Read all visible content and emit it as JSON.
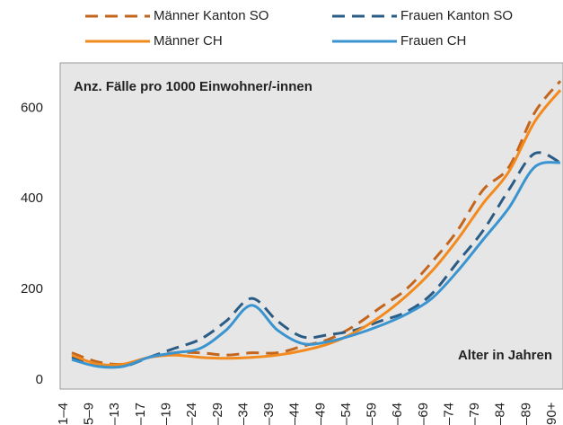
{
  "chart_data": {
    "type": "line",
    "annotations": [
      "Anz. Fälle pro 1000 Einwohner/-innen",
      "Alter in Jahren"
    ],
    "categories": [
      "1–4",
      "5–9",
      "–13",
      "–17",
      "–19",
      "–24",
      "–29",
      "–34",
      "–39",
      "–44",
      "–49",
      "–54",
      "–59",
      "–64",
      "–69",
      "–74",
      "–79",
      "–84",
      "–89",
      "90+"
    ],
    "series": [
      {
        "name": "Männer Kanton SO",
        "color": "#c4651c",
        "dashed": true,
        "values": [
          60,
          40,
          35,
          50,
          60,
          60,
          55,
          60,
          60,
          75,
          90,
          120,
          160,
          200,
          260,
          330,
          420,
          470,
          590,
          660
        ]
      },
      {
        "name": "Frauen Kanton SO",
        "color": "#2b5c86",
        "dashed": true,
        "values": [
          50,
          35,
          30,
          50,
          70,
          90,
          130,
          180,
          130,
          95,
          100,
          110,
          130,
          150,
          190,
          260,
          330,
          420,
          500,
          480
        ]
      },
      {
        "name": "Männer CH",
        "color": "#f28a1e",
        "dashed": false,
        "values": [
          55,
          35,
          35,
          50,
          55,
          50,
          48,
          50,
          55,
          65,
          80,
          105,
          140,
          185,
          240,
          310,
          390,
          460,
          570,
          640
        ]
      },
      {
        "name": "Frauen CH",
        "color": "#3a94cf",
        "dashed": false,
        "values": [
          45,
          30,
          30,
          50,
          60,
          70,
          110,
          165,
          110,
          80,
          85,
          100,
          120,
          145,
          180,
          240,
          310,
          380,
          470,
          480
        ]
      }
    ],
    "ylim": [
      -20,
      700
    ],
    "yticks": [
      0,
      200,
      400,
      600
    ],
    "grid": false
  }
}
